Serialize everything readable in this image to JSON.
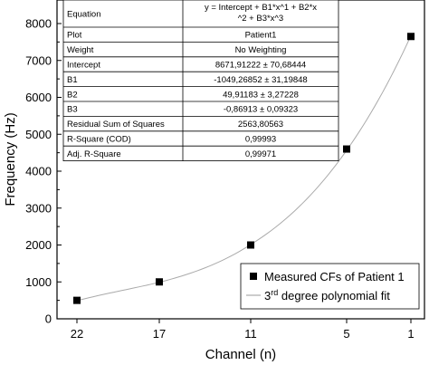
{
  "chart_data": {
    "type": "scatter",
    "xlabel": "Channel (n)",
    "ylabel": "Frequency (Hz)",
    "x_ticks": [
      "22",
      "17",
      "11",
      "5",
      "1"
    ],
    "y_ticks": [
      "0",
      "1000",
      "2000",
      "3000",
      "4000",
      "5000",
      "6000",
      "7000",
      "8000"
    ],
    "ylim": [
      0,
      8000
    ],
    "x_reversed": true,
    "points": [
      {
        "x": 22,
        "y": 500
      },
      {
        "x": 17,
        "y": 1000
      },
      {
        "x": 11,
        "y": 2000
      },
      {
        "x": 5,
        "y": 4600
      },
      {
        "x": 1,
        "y": 7650
      }
    ],
    "fit": {
      "intercept": 8671.91222,
      "b1": -1049.26852,
      "b2": 49.91183,
      "b3": -0.86913
    },
    "series": [
      {
        "name": "Measured CFs of Patient 1",
        "marker": "square",
        "color": "#000000"
      },
      {
        "name": "degree polynomial fit",
        "name_prefix": "3",
        "name_sup": "rd",
        "style": "line",
        "color": "#aaaaaa"
      }
    ],
    "legend_position": "bottom-right",
    "stats_table": [
      {
        "label": "Equation",
        "value": [
          "y = Intercept + B1*x^1 + B2*x",
          "^2 + B3*x^3"
        ]
      },
      {
        "label": "Plot",
        "value": [
          "Patient1"
        ]
      },
      {
        "label": "Weight",
        "value": [
          "No Weighting"
        ]
      },
      {
        "label": "Intercept",
        "value": [
          "8671,91222 ± 70,68444"
        ]
      },
      {
        "label": "B1",
        "value": [
          "-1049,26852 ± 31,19848"
        ]
      },
      {
        "label": "B2",
        "value": [
          "49,91183 ± 3,27228"
        ]
      },
      {
        "label": "B3",
        "value": [
          "-0,86913 ± 0,09323"
        ]
      },
      {
        "label": "Residual Sum of Squares",
        "value": [
          "2563,80563"
        ]
      },
      {
        "label": "R-Square (COD)",
        "value": [
          "0,99993"
        ]
      },
      {
        "label": "Adj. R-Square",
        "value": [
          "0,99971"
        ]
      }
    ]
  }
}
